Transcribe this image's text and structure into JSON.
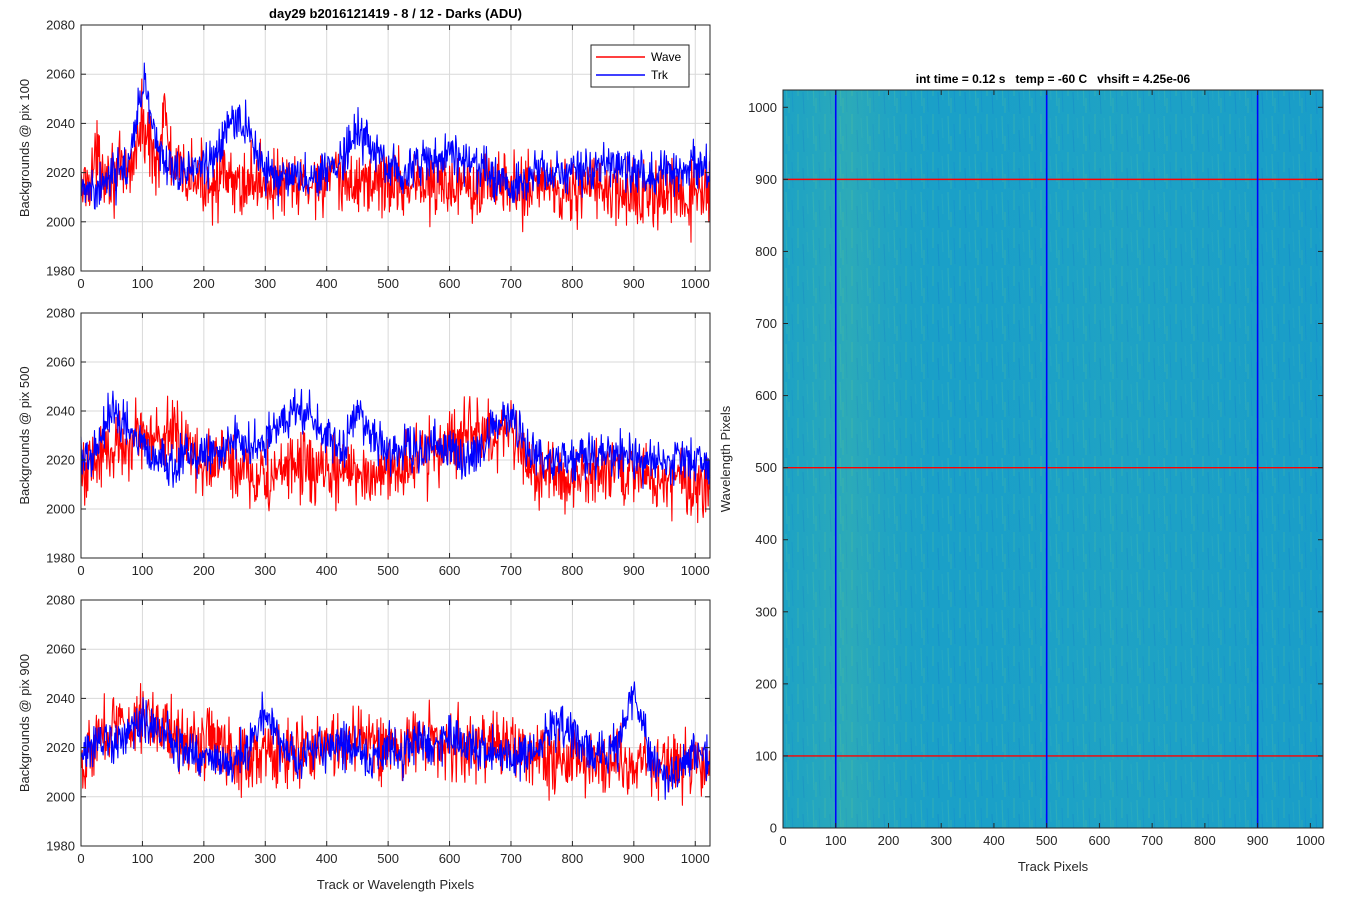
{
  "chart_data": [
    {
      "type": "line",
      "title": "day29 b2016121419 - 8 / 12 - Darks (ADU)",
      "ylabel": "Backgrounds @ pix 100",
      "xlabel": "",
      "xlim": [
        0,
        1024
      ],
      "ylim": [
        1980,
        2080
      ],
      "xticks": [
        0,
        100,
        200,
        300,
        400,
        500,
        600,
        700,
        800,
        900,
        1000
      ],
      "yticks": [
        1980,
        2000,
        2020,
        2040,
        2060,
        2080
      ],
      "grid": true,
      "legend_position": "top-right",
      "series": [
        {
          "name": "Wave",
          "color": "#ff0000",
          "x": [
            0,
            25,
            50,
            75,
            90,
            100,
            110,
            125,
            135,
            150,
            175,
            200,
            225,
            250,
            275,
            300,
            325,
            350,
            375,
            400,
            425,
            450,
            475,
            500,
            525,
            550,
            575,
            600,
            625,
            650,
            675,
            700,
            725,
            750,
            775,
            800,
            825,
            850,
            875,
            900,
            925,
            950,
            975,
            1000,
            1024
          ],
          "y": [
            2012,
            2025,
            2020,
            2018,
            2030,
            2040,
            2032,
            2025,
            2045,
            2020,
            2018,
            2016,
            2018,
            2014,
            2017,
            2016,
            2015,
            2014,
            2016,
            2018,
            2015,
            2016,
            2017,
            2016,
            2015,
            2016,
            2014,
            2015,
            2018,
            2016,
            2017,
            2012,
            2015,
            2016,
            2014,
            2012,
            2015,
            2013,
            2010,
            2012,
            2010,
            2011,
            2009,
            2010,
            2011
          ]
        },
        {
          "name": "Trk",
          "color": "#0000ff",
          "x": [
            0,
            25,
            50,
            75,
            90,
            100,
            110,
            125,
            135,
            150,
            175,
            200,
            225,
            250,
            275,
            300,
            325,
            350,
            375,
            400,
            425,
            450,
            475,
            500,
            525,
            550,
            575,
            600,
            625,
            650,
            675,
            700,
            725,
            750,
            775,
            800,
            825,
            850,
            875,
            900,
            925,
            950,
            975,
            1000,
            1024
          ],
          "y": [
            2016,
            2015,
            2018,
            2022,
            2040,
            2055,
            2050,
            2030,
            2025,
            2022,
            2020,
            2022,
            2030,
            2044,
            2035,
            2020,
            2018,
            2019,
            2016,
            2022,
            2025,
            2036,
            2030,
            2022,
            2020,
            2024,
            2025,
            2030,
            2024,
            2022,
            2018,
            2014,
            2018,
            2022,
            2020,
            2021,
            2020,
            2024,
            2022,
            2020,
            2019,
            2021,
            2020,
            2024,
            2022
          ]
        }
      ]
    },
    {
      "type": "line",
      "title": "",
      "ylabel": "Backgrounds @ pix 500",
      "xlabel": "",
      "xlim": [
        0,
        1024
      ],
      "ylim": [
        1980,
        2080
      ],
      "xticks": [
        0,
        100,
        200,
        300,
        400,
        500,
        600,
        700,
        800,
        900,
        1000
      ],
      "yticks": [
        1980,
        2000,
        2020,
        2040,
        2060,
        2080
      ],
      "grid": true,
      "series": [
        {
          "name": "Wave",
          "color": "#ff0000",
          "x": [
            0,
            25,
            50,
            75,
            100,
            125,
            150,
            175,
            200,
            225,
            250,
            275,
            300,
            325,
            350,
            375,
            400,
            425,
            450,
            475,
            500,
            525,
            550,
            575,
            600,
            625,
            650,
            675,
            700,
            725,
            750,
            775,
            800,
            825,
            850,
            875,
            900,
            925,
            950,
            975,
            1000,
            1024
          ],
          "y": [
            2015,
            2020,
            2025,
            2028,
            2030,
            2028,
            2032,
            2025,
            2018,
            2020,
            2018,
            2014,
            2012,
            2014,
            2018,
            2016,
            2014,
            2015,
            2016,
            2014,
            2016,
            2018,
            2020,
            2022,
            2028,
            2030,
            2032,
            2026,
            2030,
            2018,
            2015,
            2014,
            2012,
            2014,
            2015,
            2014,
            2016,
            2014,
            2012,
            2013,
            2010,
            2012
          ]
        },
        {
          "name": "Trk",
          "color": "#0000ff",
          "x": [
            0,
            25,
            50,
            75,
            100,
            125,
            150,
            175,
            200,
            225,
            250,
            275,
            300,
            325,
            350,
            375,
            400,
            425,
            450,
            475,
            500,
            525,
            550,
            575,
            600,
            625,
            650,
            675,
            700,
            725,
            750,
            775,
            800,
            825,
            850,
            875,
            900,
            925,
            950,
            975,
            1000,
            1024
          ],
          "y": [
            2020,
            2025,
            2040,
            2035,
            2025,
            2020,
            2018,
            2022,
            2020,
            2025,
            2030,
            2026,
            2028,
            2034,
            2040,
            2038,
            2030,
            2024,
            2042,
            2030,
            2024,
            2026,
            2022,
            2028,
            2024,
            2020,
            2024,
            2034,
            2040,
            2024,
            2020,
            2018,
            2020,
            2022,
            2021,
            2024,
            2019,
            2020,
            2018,
            2022,
            2019,
            2018
          ]
        }
      ]
    },
    {
      "type": "line",
      "title": "",
      "ylabel": "Backgrounds @ pix 900",
      "xlabel": "Track or Wavelength Pixels",
      "xlim": [
        0,
        1024
      ],
      "ylim": [
        1980,
        2080
      ],
      "xticks": [
        0,
        100,
        200,
        300,
        400,
        500,
        600,
        700,
        800,
        900,
        1000
      ],
      "yticks": [
        1980,
        2000,
        2020,
        2040,
        2060,
        2080
      ],
      "grid": true,
      "series": [
        {
          "name": "Wave",
          "color": "#ff0000",
          "x": [
            0,
            25,
            50,
            75,
            100,
            125,
            150,
            175,
            200,
            225,
            250,
            275,
            300,
            325,
            350,
            375,
            400,
            425,
            450,
            475,
            500,
            525,
            550,
            575,
            600,
            625,
            650,
            675,
            700,
            725,
            750,
            775,
            800,
            825,
            850,
            875,
            900,
            925,
            950,
            975,
            1000,
            1024
          ],
          "y": [
            2015,
            2022,
            2030,
            2028,
            2034,
            2030,
            2026,
            2024,
            2022,
            2020,
            2018,
            2016,
            2018,
            2015,
            2018,
            2020,
            2022,
            2020,
            2024,
            2022,
            2020,
            2020,
            2024,
            2022,
            2022,
            2018,
            2020,
            2024,
            2020,
            2018,
            2018,
            2016,
            2014,
            2015,
            2016,
            2014,
            2016,
            2014,
            2015,
            2012,
            2014,
            2012
          ]
        },
        {
          "name": "Trk",
          "color": "#0000ff",
          "x": [
            0,
            25,
            50,
            75,
            100,
            125,
            150,
            175,
            200,
            225,
            250,
            275,
            300,
            325,
            350,
            375,
            400,
            425,
            450,
            475,
            500,
            525,
            550,
            575,
            600,
            625,
            650,
            675,
            700,
            725,
            750,
            775,
            800,
            825,
            850,
            875,
            900,
            925,
            950,
            975,
            1000,
            1024
          ],
          "y": [
            2018,
            2020,
            2022,
            2024,
            2030,
            2028,
            2022,
            2018,
            2016,
            2014,
            2016,
            2020,
            2036,
            2022,
            2016,
            2018,
            2020,
            2022,
            2018,
            2016,
            2020,
            2018,
            2022,
            2020,
            2024,
            2022,
            2018,
            2020,
            2018,
            2016,
            2020,
            2030,
            2024,
            2018,
            2016,
            2022,
            2044,
            2018,
            2010,
            2012,
            2018,
            2014
          ]
        }
      ]
    },
    {
      "type": "heatmap",
      "title": "int time = 0.12 s   temp = -60 C   vhsift = 4.25e-06",
      "xlabel": "Track Pixels",
      "ylabel": "Wavelength Pixels",
      "xlim": [
        0,
        1024
      ],
      "ylim": [
        0,
        1024
      ],
      "xticks": [
        0,
        100,
        200,
        300,
        400,
        500,
        600,
        700,
        800,
        900,
        1000
      ],
      "yticks": [
        0,
        100,
        200,
        300,
        400,
        500,
        600,
        700,
        800,
        900,
        1000
      ],
      "colormap": "parula",
      "vertical_lines": {
        "x": [
          100,
          500,
          900
        ],
        "color": "#0000ff"
      },
      "horizontal_lines": {
        "y": [
          100,
          500,
          900
        ],
        "color": "#ff0000"
      }
    }
  ],
  "legend": {
    "entries": [
      {
        "label": "Wave",
        "color": "#ff0000"
      },
      {
        "label": "Trk",
        "color": "#0000ff"
      }
    ]
  },
  "colors": {
    "wave": "#ff0000",
    "trk": "#0000ff",
    "heatmap_base": "#1aa0c8",
    "grid": "#d9d9d9"
  }
}
